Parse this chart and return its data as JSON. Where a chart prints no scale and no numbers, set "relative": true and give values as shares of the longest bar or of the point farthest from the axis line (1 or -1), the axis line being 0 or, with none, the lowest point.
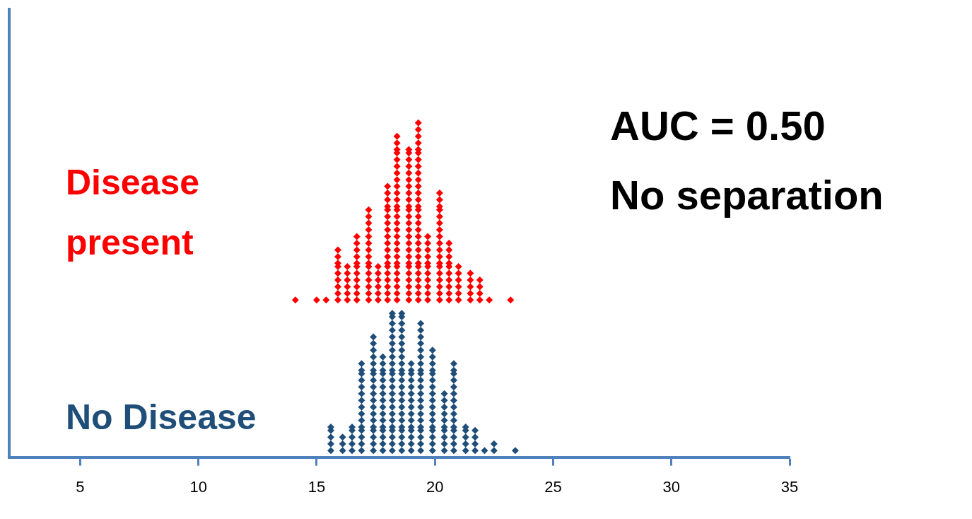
{
  "chart_data": {
    "type": "scatter",
    "relative": true,
    "marker": "diamond",
    "xlim": [
      2,
      35
    ],
    "xticks": [
      5,
      10,
      15,
      20,
      25,
      30,
      35
    ],
    "grid": false,
    "legend": false,
    "annotations": [
      "AUC = 0.50",
      "No separation"
    ],
    "series": [
      {
        "name": "Disease present",
        "color": "#ff0000",
        "x": [
          14.1,
          15.0,
          15.4,
          15.9,
          15.9,
          15.9,
          15.9,
          15.9,
          15.9,
          15.9,
          15.9,
          15.9,
          16.3,
          16.3,
          16.3,
          16.3,
          16.3,
          16.3,
          16.7,
          16.7,
          16.7,
          16.7,
          16.7,
          16.7,
          16.7,
          16.7,
          16.7,
          16.7,
          16.7,
          17.2,
          17.2,
          17.2,
          17.2,
          17.2,
          17.2,
          17.2,
          17.2,
          17.2,
          17.2,
          17.2,
          17.2,
          17.2,
          17.2,
          17.2,
          17.6,
          17.6,
          17.6,
          17.6,
          17.6,
          17.6,
          18.0,
          18.0,
          18.0,
          18.0,
          18.0,
          18.0,
          18.0,
          18.0,
          18.0,
          18.0,
          18.0,
          18.0,
          18.0,
          18.0,
          18.0,
          18.0,
          18.0,
          18.0,
          18.0,
          18.4,
          18.4,
          18.4,
          18.4,
          18.4,
          18.4,
          18.4,
          18.4,
          18.4,
          18.4,
          18.4,
          18.4,
          18.4,
          18.4,
          18.4,
          18.4,
          18.4,
          18.4,
          18.4,
          18.4,
          18.4,
          18.4,
          18.4,
          18.4,
          18.4,
          18.4,
          18.4,
          18.9,
          18.9,
          18.9,
          18.9,
          18.9,
          18.9,
          18.9,
          18.9,
          18.9,
          18.9,
          18.9,
          18.9,
          18.9,
          18.9,
          18.9,
          18.9,
          18.9,
          18.9,
          18.9,
          18.9,
          18.9,
          18.9,
          18.9,
          18.9,
          18.9,
          19.3,
          19.3,
          19.3,
          19.3,
          19.3,
          19.3,
          19.3,
          19.3,
          19.3,
          19.3,
          19.3,
          19.3,
          19.3,
          19.3,
          19.3,
          19.3,
          19.3,
          19.3,
          19.3,
          19.3,
          19.3,
          19.3,
          19.3,
          19.3,
          19.3,
          19.3,
          19.3,
          19.3,
          19.3,
          19.7,
          19.7,
          19.7,
          19.7,
          19.7,
          19.7,
          19.7,
          19.7,
          19.7,
          19.7,
          19.7,
          20.2,
          20.2,
          20.2,
          20.2,
          20.2,
          20.2,
          20.2,
          20.2,
          20.2,
          20.2,
          20.2,
          20.2,
          20.2,
          20.2,
          20.2,
          20.2,
          20.2,
          20.2,
          20.6,
          20.6,
          20.6,
          20.6,
          20.6,
          20.6,
          20.6,
          20.6,
          20.6,
          20.6,
          21.0,
          21.0,
          21.0,
          21.0,
          21.0,
          21.0,
          21.5,
          21.5,
          21.5,
          21.5,
          21.5,
          21.9,
          21.9,
          21.9,
          21.9,
          22.3,
          23.2
        ],
        "values": [
          0.47,
          0.47,
          0.47,
          0.47,
          0.49,
          0.51,
          0.53,
          0.55,
          0.57,
          0.58,
          0.6,
          0.62,
          0.47,
          0.49,
          0.51,
          0.53,
          0.55,
          0.57,
          0.47,
          0.49,
          0.51,
          0.53,
          0.55,
          0.57,
          0.58,
          0.6,
          0.62,
          0.64,
          0.66,
          0.47,
          0.49,
          0.51,
          0.53,
          0.55,
          0.57,
          0.58,
          0.6,
          0.62,
          0.64,
          0.66,
          0.68,
          0.7,
          0.72,
          0.74,
          0.47,
          0.49,
          0.51,
          0.53,
          0.55,
          0.57,
          0.47,
          0.49,
          0.51,
          0.53,
          0.55,
          0.57,
          0.58,
          0.6,
          0.62,
          0.64,
          0.66,
          0.68,
          0.7,
          0.72,
          0.74,
          0.75,
          0.77,
          0.79,
          0.81,
          0.47,
          0.49,
          0.51,
          0.53,
          0.55,
          0.57,
          0.58,
          0.6,
          0.62,
          0.64,
          0.66,
          0.68,
          0.7,
          0.72,
          0.74,
          0.75,
          0.77,
          0.79,
          0.81,
          0.83,
          0.85,
          0.87,
          0.89,
          0.91,
          0.92,
          0.94,
          0.96,
          0.47,
          0.49,
          0.51,
          0.53,
          0.55,
          0.57,
          0.58,
          0.6,
          0.62,
          0.64,
          0.66,
          0.68,
          0.7,
          0.72,
          0.74,
          0.75,
          0.77,
          0.79,
          0.81,
          0.83,
          0.85,
          0.87,
          0.89,
          0.91,
          0.92,
          0.47,
          0.49,
          0.51,
          0.53,
          0.55,
          0.57,
          0.58,
          0.6,
          0.62,
          0.64,
          0.66,
          0.68,
          0.7,
          0.72,
          0.74,
          0.75,
          0.77,
          0.79,
          0.81,
          0.83,
          0.85,
          0.87,
          0.89,
          0.91,
          0.92,
          0.94,
          0.96,
          0.98,
          1,
          0.47,
          0.49,
          0.51,
          0.53,
          0.55,
          0.57,
          0.58,
          0.6,
          0.62,
          0.64,
          0.66,
          0.47,
          0.49,
          0.51,
          0.53,
          0.55,
          0.57,
          0.58,
          0.6,
          0.62,
          0.64,
          0.66,
          0.68,
          0.7,
          0.72,
          0.74,
          0.75,
          0.77,
          0.79,
          0.47,
          0.49,
          0.51,
          0.53,
          0.55,
          0.57,
          0.58,
          0.6,
          0.62,
          0.64,
          0.47,
          0.49,
          0.51,
          0.53,
          0.55,
          0.57,
          0.47,
          0.49,
          0.51,
          0.53,
          0.55,
          0.47,
          0.49,
          0.51,
          0.53,
          0.47,
          0.47
        ]
      },
      {
        "name": "No Disease",
        "color": "#1f4e79",
        "x": [
          15.6,
          15.6,
          15.6,
          15.6,
          15.6,
          16.1,
          16.1,
          16.1,
          16.5,
          16.5,
          16.5,
          16.5,
          16.5,
          16.9,
          16.9,
          16.9,
          16.9,
          16.9,
          16.9,
          16.9,
          16.9,
          16.9,
          16.9,
          16.9,
          16.9,
          16.9,
          16.9,
          16.9,
          17.4,
          17.4,
          17.4,
          17.4,
          17.4,
          17.4,
          17.4,
          17.4,
          17.4,
          17.4,
          17.4,
          17.4,
          17.4,
          17.4,
          17.4,
          17.4,
          17.4,
          17.4,
          17.4,
          17.8,
          17.8,
          17.8,
          17.8,
          17.8,
          17.8,
          17.8,
          17.8,
          17.8,
          17.8,
          17.8,
          17.8,
          17.8,
          17.8,
          17.8,
          17.8,
          18.2,
          18.2,
          18.2,
          18.2,
          18.2,
          18.2,
          18.2,
          18.2,
          18.2,
          18.2,
          18.2,
          18.2,
          18.2,
          18.2,
          18.2,
          18.2,
          18.2,
          18.2,
          18.2,
          18.2,
          18.2,
          18.2,
          18.2,
          18.6,
          18.6,
          18.6,
          18.6,
          18.6,
          18.6,
          18.6,
          18.6,
          18.6,
          18.6,
          18.6,
          18.6,
          18.6,
          18.6,
          18.6,
          18.6,
          18.6,
          18.6,
          18.6,
          18.6,
          18.6,
          18.6,
          18.6,
          19.0,
          19.0,
          19.0,
          19.0,
          19.0,
          19.0,
          19.0,
          19.0,
          19.0,
          19.0,
          19.0,
          19.0,
          19.0,
          19.0,
          19.0,
          19.4,
          19.4,
          19.4,
          19.4,
          19.4,
          19.4,
          19.4,
          19.4,
          19.4,
          19.4,
          19.4,
          19.4,
          19.4,
          19.4,
          19.4,
          19.4,
          19.4,
          19.4,
          19.4,
          19.4,
          19.4,
          19.9,
          19.9,
          19.9,
          19.9,
          19.9,
          19.9,
          19.9,
          19.9,
          19.9,
          19.9,
          19.9,
          19.9,
          19.9,
          19.9,
          19.9,
          19.9,
          19.9,
          20.4,
          20.4,
          20.4,
          20.4,
          20.4,
          20.4,
          20.4,
          20.4,
          20.4,
          20.4,
          20.8,
          20.8,
          20.8,
          20.8,
          20.8,
          20.8,
          20.8,
          20.8,
          20.8,
          20.8,
          20.8,
          20.8,
          20.8,
          20.8,
          20.8,
          21.3,
          21.3,
          21.3,
          21.3,
          21.3,
          21.7,
          21.7,
          21.7,
          21.7,
          22.1,
          22.5,
          22.5,
          23.4
        ],
        "values": [
          0.02,
          0.04,
          0.06,
          0.08,
          0.09,
          0.02,
          0.04,
          0.06,
          0.02,
          0.04,
          0.06,
          0.08,
          0.09,
          0.02,
          0.04,
          0.06,
          0.08,
          0.09,
          0.11,
          0.13,
          0.15,
          0.17,
          0.19,
          0.21,
          0.23,
          0.25,
          0.26,
          0.28,
          0.02,
          0.04,
          0.06,
          0.08,
          0.09,
          0.11,
          0.13,
          0.15,
          0.17,
          0.19,
          0.21,
          0.23,
          0.25,
          0.26,
          0.28,
          0.3,
          0.32,
          0.34,
          0.36,
          0.02,
          0.04,
          0.06,
          0.08,
          0.09,
          0.11,
          0.13,
          0.15,
          0.17,
          0.19,
          0.21,
          0.23,
          0.25,
          0.26,
          0.28,
          0.3,
          0.02,
          0.04,
          0.06,
          0.08,
          0.09,
          0.11,
          0.13,
          0.15,
          0.17,
          0.19,
          0.21,
          0.23,
          0.25,
          0.26,
          0.28,
          0.3,
          0.32,
          0.34,
          0.36,
          0.38,
          0.4,
          0.42,
          0.43,
          0.02,
          0.04,
          0.06,
          0.08,
          0.09,
          0.11,
          0.13,
          0.15,
          0.17,
          0.19,
          0.21,
          0.23,
          0.25,
          0.26,
          0.28,
          0.3,
          0.32,
          0.34,
          0.36,
          0.38,
          0.4,
          0.42,
          0.43,
          0.02,
          0.04,
          0.06,
          0.08,
          0.09,
          0.11,
          0.13,
          0.15,
          0.17,
          0.19,
          0.21,
          0.23,
          0.25,
          0.26,
          0.28,
          0.02,
          0.04,
          0.06,
          0.08,
          0.09,
          0.11,
          0.13,
          0.15,
          0.17,
          0.19,
          0.21,
          0.23,
          0.25,
          0.26,
          0.28,
          0.3,
          0.32,
          0.34,
          0.36,
          0.38,
          0.4,
          0.02,
          0.04,
          0.06,
          0.08,
          0.09,
          0.11,
          0.13,
          0.15,
          0.17,
          0.19,
          0.21,
          0.23,
          0.25,
          0.26,
          0.28,
          0.3,
          0.32,
          0.02,
          0.04,
          0.06,
          0.08,
          0.09,
          0.11,
          0.13,
          0.15,
          0.17,
          0.19,
          0.02,
          0.04,
          0.06,
          0.08,
          0.09,
          0.11,
          0.13,
          0.15,
          0.17,
          0.19,
          0.21,
          0.23,
          0.25,
          0.26,
          0.28,
          0.02,
          0.04,
          0.06,
          0.08,
          0.09,
          0.02,
          0.04,
          0.06,
          0.08,
          0.02,
          0.02,
          0.04,
          0.02
        ]
      }
    ]
  }
}
